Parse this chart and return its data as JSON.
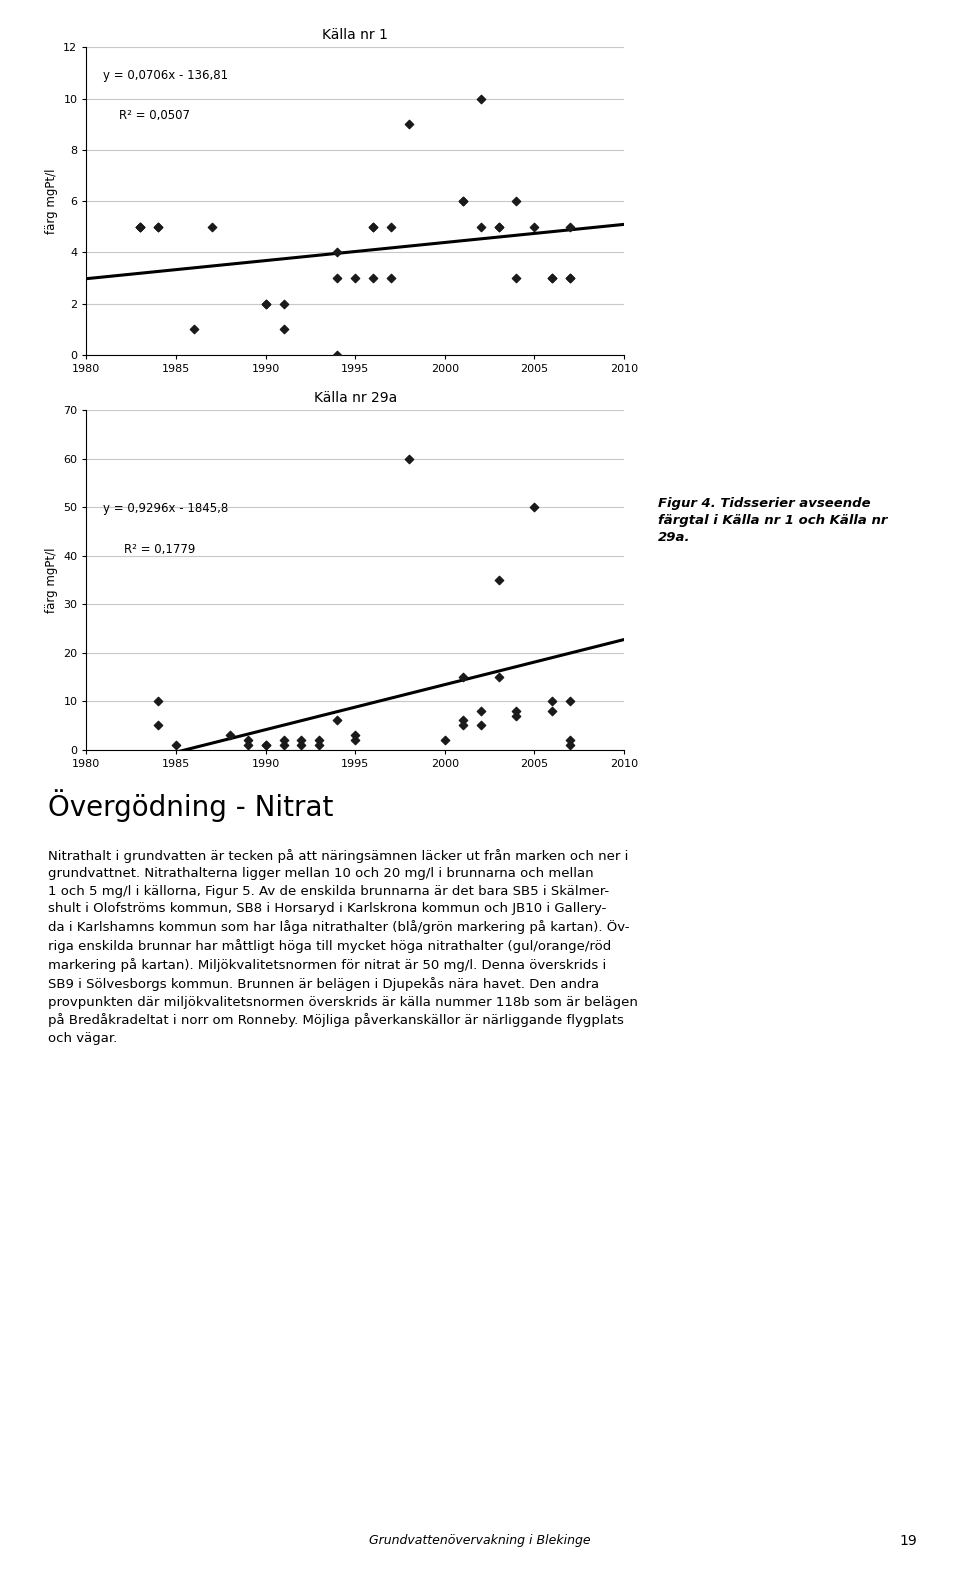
{
  "chart1": {
    "title": "Källa nr 1",
    "ylabel": "färg mgPt/l",
    "xlim": [
      1980,
      2010
    ],
    "ylim": [
      0,
      12
    ],
    "yticks": [
      0,
      2,
      4,
      6,
      8,
      10,
      12
    ],
    "xticks": [
      1980,
      1985,
      1990,
      1995,
      2000,
      2005,
      2010
    ],
    "equation": "y = 0,0706x - 136,81",
    "r2": "R² = 0,0507",
    "trend_slope": 0.0706,
    "trend_intercept": -136.81,
    "scatter_x": [
      1983,
      1983,
      1983,
      1984,
      1984,
      1986,
      1987,
      1990,
      1990,
      1991,
      1991,
      1994,
      1994,
      1994,
      1995,
      1996,
      1996,
      1996,
      1997,
      1997,
      1998,
      2001,
      2001,
      2002,
      2002,
      2003,
      2003,
      2004,
      2004,
      2005,
      2006,
      2006,
      2007,
      2007,
      2007
    ],
    "scatter_y": [
      5,
      5,
      5,
      5,
      5,
      1,
      5,
      2,
      2,
      1,
      2,
      0,
      3,
      4,
      3,
      5,
      5,
      3,
      3,
      5,
      9,
      6,
      6,
      10,
      5,
      5,
      5,
      6,
      3,
      5,
      3,
      3,
      3,
      3,
      5
    ]
  },
  "chart2": {
    "title": "Källa nr 29a",
    "ylabel": "färg mgPt/l",
    "xlim": [
      1980,
      2010
    ],
    "ylim": [
      0,
      70
    ],
    "yticks": [
      0,
      10,
      20,
      30,
      40,
      50,
      60,
      70
    ],
    "xticks": [
      1980,
      1985,
      1990,
      1995,
      2000,
      2005,
      2010
    ],
    "equation": "y = 0,9296x - 1845,8",
    "r2": "R² = 0,1779",
    "trend_slope": 0.9296,
    "trend_intercept": -1845.8,
    "scatter_x": [
      1984,
      1984,
      1985,
      1988,
      1989,
      1989,
      1990,
      1990,
      1991,
      1991,
      1992,
      1992,
      1993,
      1993,
      1994,
      1995,
      1995,
      1998,
      2000,
      2001,
      2001,
      2001,
      2002,
      2002,
      2003,
      2003,
      2004,
      2004,
      2005,
      2006,
      2006,
      2007,
      2007,
      2007
    ],
    "scatter_y": [
      5,
      10,
      1,
      3,
      2,
      1,
      1,
      1,
      1,
      2,
      2,
      1,
      2,
      1,
      6,
      2,
      3,
      60,
      2,
      6,
      5,
      15,
      5,
      8,
      15,
      35,
      8,
      7,
      50,
      10,
      8,
      10,
      2,
      1
    ]
  },
  "figure_caption_bold": "Figur 4. Tidsserier avseende\nfärgtal i Källa nr 1 och Källa nr\n29a.",
  "section_title": "Övergödning - Nitrat",
  "body_lines": [
    "Nitrathalt i grundvatten är tecken på att näringsämnen läcker ut från marken och ner i",
    "grundvattnet. Nitrathalterna ligger mellan 10 och 20 mg/l i brunnarna och mellan",
    "1 och 5 mg/l i källorna, Figur 5. Av de enskilda brunnarna är det bara SB5 i Skälmer-",
    "shult i Olofströms kommun, SB8 i Horsaryd i Karlskrona kommun och JB10 i Gallery-",
    "da i Karlshamns kommun som har låga nitrathalter (blå/grön markering på kartan). Öv-",
    "riga enskilda brunnar har måttligt höga till mycket höga nitrathalter (gul/orange/röd",
    "markering på kartan). Miljökvalitetsnormen för nitrat är 50 mg/l. Denna överskrids i",
    "SB9 i Sölvesborgs kommun. Brunnen är belägen i Djupekås nära havet. Den andra",
    "provpunkten där miljökvalitetsnormen överskrids är källa nummer 118b som är belägen",
    "på Bredåkradeltat i norr om Ronneby. Möjliga påverkanskällor är närliggande flygplats",
    "och vägar."
  ],
  "footer_text": "Grundvattenövervakning i Blekinge",
  "page_number": "19",
  "background_color": "#ffffff",
  "scatter_color": "#1a1a1a",
  "trend_color": "#000000",
  "grid_color": "#c8c8c8",
  "footer_line_color": "#cc0000"
}
